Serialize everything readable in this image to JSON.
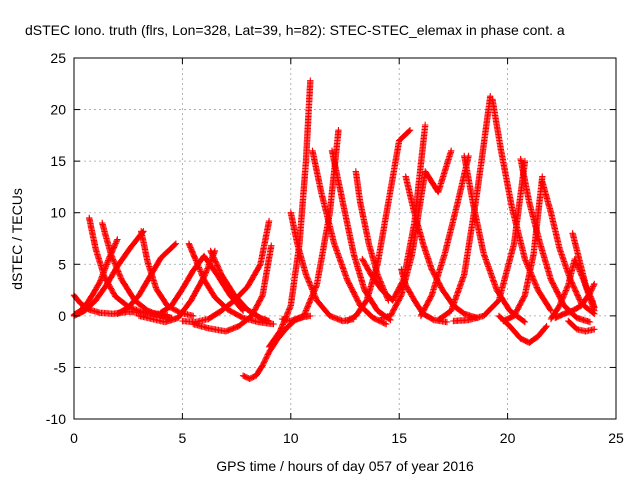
{
  "chart_data": {
    "type": "scatter",
    "title": "dSTEC Iono. truth (flrs, Lon=328, Lat=39, h=82): STEC-STEC_elemax in phase cont. a",
    "xlabel": "GPS time / hours of day 057 of year 2016",
    "ylabel": "dSTEC  / TECUs",
    "xlim": [
      0,
      25
    ],
    "ylim": [
      -10,
      25
    ],
    "xticks": [
      0,
      5,
      10,
      15,
      20,
      25
    ],
    "yticks": [
      -10,
      -5,
      0,
      5,
      10,
      15,
      20,
      25
    ],
    "grid": true,
    "marker": "+",
    "color": "#ff0000",
    "series": [
      {
        "x": [
          0.0,
          0.3,
          0.7,
          1.2,
          1.8,
          2.5,
          3.2,
          3.9,
          4.5
        ],
        "y": [
          2.0,
          1.2,
          0.6,
          0.3,
          0.2,
          0.4,
          0.3,
          0.1,
          -0.2
        ]
      },
      {
        "x": [
          0.0,
          0.3,
          0.6,
          0.9,
          1.2,
          1.6,
          2.0
        ],
        "y": [
          0.1,
          0.5,
          1.2,
          2.2,
          3.3,
          5.5,
          7.4
        ]
      },
      {
        "x": [
          0.7,
          1.0,
          1.4,
          1.9,
          2.5,
          3.2,
          3.9,
          4.3
        ],
        "y": [
          9.5,
          6.5,
          3.8,
          1.9,
          0.9,
          0.3,
          0.2,
          0.1
        ]
      },
      {
        "x": [
          1.3,
          1.7,
          2.2,
          2.8,
          3.4,
          4.0,
          4.5
        ],
        "y": [
          9.0,
          6.0,
          3.5,
          1.5,
          0.5,
          0.0,
          -0.2
        ]
      },
      {
        "x": [
          0.0,
          0.5,
          1.0,
          1.5,
          2.0,
          2.6,
          3.2
        ],
        "y": [
          0.0,
          0.5,
          1.5,
          3.0,
          4.8,
          6.6,
          8.2
        ]
      },
      {
        "x": [
          3.1,
          3.4,
          3.8,
          4.3,
          4.9,
          5.5
        ],
        "y": [
          8.2,
          5.2,
          2.6,
          1.0,
          0.3,
          0.0
        ]
      },
      {
        "x": [
          2.0,
          2.5,
          3.0,
          3.5,
          4.0,
          4.7
        ],
        "y": [
          0.2,
          0.8,
          2.0,
          3.8,
          5.6,
          7.0
        ]
      },
      {
        "x": [
          3.0,
          3.6,
          4.2,
          4.8,
          5.4,
          6.0,
          6.5
        ],
        "y": [
          0.0,
          -0.3,
          -0.6,
          -0.2,
          1.5,
          3.8,
          6.3
        ]
      },
      {
        "x": [
          4.0,
          4.5,
          5.0,
          5.5,
          6.0,
          6.6,
          7.2,
          7.8
        ],
        "y": [
          0.3,
          1.0,
          2.6,
          4.4,
          5.8,
          4.0,
          2.0,
          0.5
        ]
      },
      {
        "x": [
          6.3,
          6.8,
          7.4,
          8.0,
          8.6,
          9.0
        ],
        "y": [
          6.3,
          4.0,
          2.0,
          0.6,
          -0.2,
          -0.5
        ]
      },
      {
        "x": [
          5.3,
          5.6,
          6.0,
          6.5,
          7.1,
          7.8,
          8.5,
          9.2
        ],
        "y": [
          7.0,
          5.5,
          3.5,
          1.8,
          0.6,
          -0.2,
          -0.6,
          -0.8
        ]
      },
      {
        "x": [
          5.0,
          5.6,
          6.2,
          6.8,
          7.4,
          8.0,
          8.6,
          9.0
        ],
        "y": [
          -0.5,
          -0.6,
          -0.3,
          0.5,
          1.5,
          2.8,
          5.0,
          9.2
        ]
      },
      {
        "x": [
          5.5,
          6.2,
          7.0,
          7.6,
          8.2,
          8.7,
          9.1
        ],
        "y": [
          -0.8,
          -1.2,
          -1.5,
          -1.0,
          0.0,
          2.0,
          6.8
        ]
      },
      {
        "x": [
          7.8,
          8.1,
          8.4,
          8.7,
          9.0,
          9.4,
          9.8,
          10.2,
          10.6,
          10.9
        ],
        "y": [
          -5.8,
          -6.1,
          -5.8,
          -4.8,
          -3.5,
          -2.2,
          -1.2,
          -0.4,
          -0.1,
          0.0
        ]
      },
      {
        "x": [
          9.0,
          9.5,
          10.0,
          10.4,
          10.7,
          10.9
        ],
        "y": [
          -3.0,
          -1.5,
          1.0,
          7.0,
          15.0,
          22.8
        ]
      },
      {
        "x": [
          10.0,
          10.3,
          10.7,
          11.2,
          11.8,
          12.4,
          12.9
        ],
        "y": [
          10.0,
          7.0,
          4.0,
          1.5,
          0.0,
          -0.5,
          -0.3
        ]
      },
      {
        "x": [
          9.6,
          10.0,
          10.6,
          11.2,
          11.8,
          12.2
        ],
        "y": [
          -0.3,
          -0.5,
          0.0,
          3.0,
          10.0,
          18.0
        ]
      },
      {
        "x": [
          11.0,
          11.4,
          12.0,
          12.6,
          13.2,
          13.8,
          14.4
        ],
        "y": [
          16.0,
          12.0,
          7.0,
          3.5,
          1.0,
          -0.2,
          -0.8
        ]
      },
      {
        "x": [
          11.9,
          12.2,
          12.5,
          12.9,
          13.4,
          14.0,
          14.6
        ],
        "y": [
          16.0,
          13.0,
          10.0,
          6.0,
          2.5,
          0.5,
          -0.4
        ]
      },
      {
        "x": [
          13.0,
          13.2,
          13.6,
          14.0,
          14.5
        ],
        "y": [
          14.0,
          11.0,
          7.0,
          4.0,
          1.5
        ]
      },
      {
        "x": [
          12.6,
          13.0,
          13.5,
          14.0,
          14.5,
          15.0,
          15.5
        ],
        "y": [
          -0.5,
          0.0,
          1.5,
          5.0,
          11.0,
          17.0,
          18.0
        ]
      },
      {
        "x": [
          13.3,
          13.7,
          14.2,
          14.7,
          15.2,
          15.7,
          16.2
        ],
        "y": [
          5.5,
          4.0,
          2.5,
          1.5,
          3.5,
          9.0,
          18.5
        ]
      },
      {
        "x": [
          14.2,
          14.6,
          15.1,
          15.6,
          16.2,
          16.8,
          17.4
        ],
        "y": [
          -0.2,
          0.0,
          2.0,
          6.0,
          14.0,
          12.0,
          16.0
        ]
      },
      {
        "x": [
          15.1,
          15.3,
          15.7,
          16.1,
          16.6,
          17.2
        ],
        "y": [
          4.5,
          3.0,
          1.5,
          0.2,
          -0.4,
          -0.6
        ]
      },
      {
        "x": [
          15.3,
          15.7,
          16.1,
          16.5,
          17.0,
          17.5,
          18.0,
          18.6
        ],
        "y": [
          13.5,
          10.0,
          7.0,
          4.5,
          2.5,
          1.0,
          0.2,
          -0.2
        ]
      },
      {
        "x": [
          16.0,
          16.5,
          17.1,
          17.7,
          18.2
        ],
        "y": [
          0.0,
          2.0,
          6.0,
          11.0,
          15.5
        ]
      },
      {
        "x": [
          18.0,
          18.4,
          18.9,
          19.5,
          20.1,
          20.8
        ],
        "y": [
          15.5,
          11.0,
          6.0,
          2.5,
          0.5,
          -0.6
        ]
      },
      {
        "x": [
          16.8,
          17.4,
          18.0,
          18.6,
          19.2
        ],
        "y": [
          -0.4,
          0.5,
          4.0,
          12.0,
          21.3
        ]
      },
      {
        "x": [
          19.3,
          19.7,
          20.2,
          20.8,
          21.4,
          22.0
        ],
        "y": [
          21.0,
          16.0,
          10.5,
          5.5,
          2.5,
          0.5
        ]
      },
      {
        "x": [
          17.5,
          18.2,
          18.9,
          19.6,
          20.3,
          20.8
        ],
        "y": [
          -0.5,
          -0.4,
          0.0,
          1.5,
          7.0,
          15.0
        ]
      },
      {
        "x": [
          20.6,
          21.0,
          21.5,
          22.0,
          22.6,
          23.2,
          23.8
        ],
        "y": [
          15.2,
          11.0,
          7.0,
          3.5,
          1.0,
          -0.2,
          -0.6
        ]
      },
      {
        "x": [
          19.8,
          20.3,
          20.8,
          21.2,
          21.6
        ],
        "y": [
          -0.5,
          0.0,
          2.0,
          6.0,
          13.5
        ]
      },
      {
        "x": [
          21.6,
          22.0,
          22.4,
          22.9,
          23.4,
          24.0
        ],
        "y": [
          13.0,
          10.0,
          6.5,
          3.5,
          1.2,
          0.2
        ]
      },
      {
        "x": [
          19.6,
          20.1,
          20.6,
          21.0,
          21.4,
          21.8
        ],
        "y": [
          0.0,
          -1.0,
          -2.2,
          -2.6,
          -2.0,
          -1.0
        ]
      },
      {
        "x": [
          22.0,
          22.4,
          22.8,
          23.1,
          23.5,
          24.0
        ],
        "y": [
          -0.3,
          1.0,
          3.0,
          5.5,
          3.5,
          0.5
        ]
      },
      {
        "x": [
          23.0,
          23.3,
          23.6,
          23.9,
          24.0
        ],
        "y": [
          8.0,
          5.5,
          3.0,
          1.5,
          0.8
        ]
      },
      {
        "x": [
          22.8,
          23.2,
          23.6,
          24.0
        ],
        "y": [
          -0.5,
          -1.3,
          -1.5,
          -1.3
        ]
      },
      {
        "x": [
          22.2,
          22.6,
          23.0,
          23.4,
          23.8,
          24.0
        ],
        "y": [
          -0.2,
          0.2,
          0.5,
          1.0,
          2.2,
          3.1
        ]
      }
    ]
  }
}
